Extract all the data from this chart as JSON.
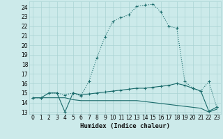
{
  "xlabel": "Humidex (Indice chaleur)",
  "background_color": "#cceaea",
  "grid_color": "#aad4d4",
  "line_color": "#1a6b6b",
  "xlim": [
    -0.5,
    23.5
  ],
  "ylim": [
    12.8,
    24.6
  ],
  "yticks": [
    13,
    14,
    15,
    16,
    17,
    18,
    19,
    20,
    21,
    22,
    23,
    24
  ],
  "xticks": [
    0,
    1,
    2,
    3,
    4,
    5,
    6,
    7,
    8,
    9,
    10,
    11,
    12,
    13,
    14,
    15,
    16,
    17,
    18,
    19,
    20,
    21,
    22,
    23
  ],
  "curve1_x": [
    0,
    1,
    2,
    3,
    4,
    5,
    6,
    7,
    8,
    9,
    10,
    11,
    12,
    13,
    14,
    15,
    16,
    17,
    18,
    19,
    20,
    21,
    22,
    23
  ],
  "curve1_y": [
    14.5,
    14.5,
    15.0,
    15.0,
    14.8,
    15.0,
    14.7,
    16.2,
    18.7,
    20.9,
    22.5,
    22.9,
    23.2,
    24.1,
    24.2,
    24.3,
    23.5,
    22.0,
    21.8,
    16.2,
    15.5,
    15.2,
    16.2,
    13.5
  ],
  "curve2_x": [
    0,
    1,
    2,
    3,
    4,
    5,
    6,
    7,
    8,
    9,
    10,
    11,
    12,
    13,
    14,
    15,
    16,
    17,
    18,
    19,
    20,
    21,
    22,
    23
  ],
  "curve2_y": [
    14.5,
    14.5,
    15.0,
    15.0,
    13.0,
    15.0,
    14.8,
    14.9,
    15.0,
    15.1,
    15.2,
    15.3,
    15.4,
    15.5,
    15.5,
    15.6,
    15.7,
    15.8,
    16.0,
    15.8,
    15.5,
    15.2,
    13.1,
    13.5
  ],
  "curve3_x": [
    0,
    1,
    2,
    3,
    4,
    5,
    6,
    7,
    8,
    9,
    10,
    11,
    12,
    13,
    14,
    15,
    16,
    17,
    18,
    19,
    20,
    21,
    22,
    23
  ],
  "curve3_y": [
    14.5,
    14.5,
    14.5,
    14.5,
    14.5,
    14.3,
    14.2,
    14.2,
    14.2,
    14.2,
    14.2,
    14.2,
    14.2,
    14.2,
    14.1,
    14.0,
    13.9,
    13.8,
    13.7,
    13.6,
    13.5,
    13.4,
    13.0,
    13.3
  ]
}
